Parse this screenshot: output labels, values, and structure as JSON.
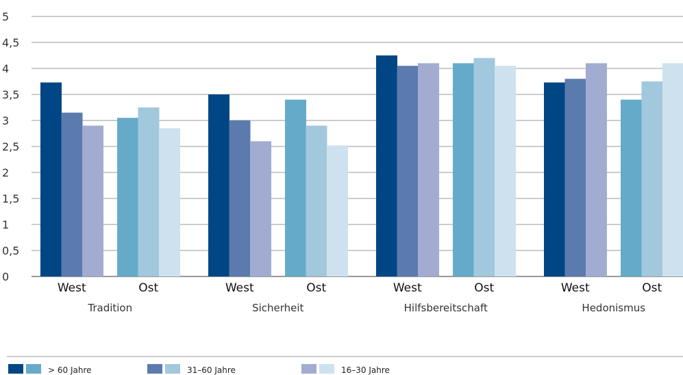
{
  "colors": {
    "west": [
      "#004684",
      "#5b7bae",
      "#a1acd0"
    ],
    "ost": [
      "#66aac9",
      "#a1c8dd",
      "#cde2ee"
    ],
    "grid": "#9a9a9a"
  },
  "legend": [
    {
      "label": "> 60 Jahre"
    },
    {
      "label": "31–60 Jahre"
    },
    {
      "label": "16–30 Jahre"
    }
  ],
  "chart_data": {
    "type": "bar",
    "title": "",
    "xlabel": "",
    "ylabel": "",
    "ylim": [
      0,
      5
    ],
    "yticks": [
      "0",
      "0,5",
      "1",
      "1,5",
      "2",
      "2,5",
      "3",
      "3,5",
      "4",
      "4,5",
      "5"
    ],
    "grid": true,
    "legend_position": "bottom",
    "categories": [
      "Tradition",
      "Sicherheit",
      "Hilfsbereitschaft",
      "Hedonismus"
    ],
    "subcategories": [
      "West",
      "Ost"
    ],
    "series": [
      {
        "name": "> 60 Jahre",
        "west": [
          3.73,
          3.5,
          4.25,
          3.73
        ],
        "ost": [
          3.05,
          3.4,
          4.1,
          3.4
        ]
      },
      {
        "name": "31–60 Jahre",
        "west": [
          3.15,
          3.0,
          4.05,
          3.8
        ],
        "ost": [
          3.25,
          2.9,
          4.2,
          3.75
        ]
      },
      {
        "name": "16–30 Jahre",
        "west": [
          2.9,
          2.6,
          4.1,
          4.1
        ],
        "ost": [
          2.85,
          2.52,
          4.05,
          4.1
        ]
      }
    ]
  }
}
